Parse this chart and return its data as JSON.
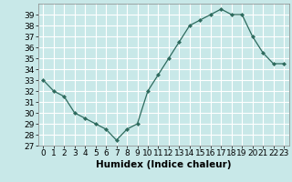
{
  "x": [
    0,
    1,
    2,
    3,
    4,
    5,
    6,
    7,
    8,
    9,
    10,
    11,
    12,
    13,
    14,
    15,
    16,
    17,
    18,
    19,
    20,
    21,
    22,
    23
  ],
  "y": [
    33,
    32,
    31.5,
    30,
    29.5,
    29,
    28.5,
    27.5,
    28.5,
    29,
    32,
    33.5,
    35,
    36.5,
    38,
    38.5,
    39,
    39.5,
    39,
    39,
    37,
    35.5,
    34.5,
    34.5
  ],
  "line_color": "#2e6b5e",
  "marker": "D",
  "marker_size": 2,
  "bg_color": "#c8e8e8",
  "grid_color": "#ffffff",
  "xlabel": "Humidex (Indice chaleur)",
  "ylim": [
    27,
    40
  ],
  "xlim": [
    -0.5,
    23.5
  ],
  "yticks": [
    27,
    28,
    29,
    30,
    31,
    32,
    33,
    34,
    35,
    36,
    37,
    38,
    39
  ],
  "xticks": [
    0,
    1,
    2,
    3,
    4,
    5,
    6,
    7,
    8,
    9,
    10,
    11,
    12,
    13,
    14,
    15,
    16,
    17,
    18,
    19,
    20,
    21,
    22,
    23
  ],
  "tick_fontsize": 6.5,
  "xlabel_fontsize": 7.5
}
